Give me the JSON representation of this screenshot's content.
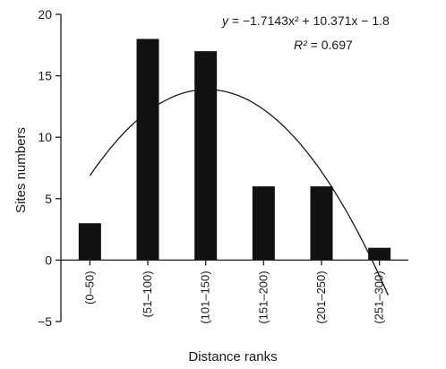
{
  "chart_data": {
    "type": "bar",
    "categories": [
      "(0–50)",
      "(51–100)",
      "(101–150)",
      "(151–200)",
      "(201–250)",
      "(251–300)"
    ],
    "values": [
      3,
      18,
      17,
      6,
      6,
      1
    ],
    "xlabel": "Distance ranks",
    "ylabel": "Sites numbers",
    "ylim": [
      -5,
      20
    ],
    "yticks": [
      "-5",
      "0",
      "5",
      "10",
      "15",
      "20"
    ],
    "grid": false,
    "trendline": {
      "type": "polynomial",
      "coefficients": [
        -1.7143,
        10.371,
        -1.8
      ],
      "equation": {
        "y_var": "y",
        "rhs": " = −1.7143x² + 10.371x − 1.8"
      },
      "r_squared": {
        "r_var": "R²",
        "rhs": " = 0.697"
      }
    }
  }
}
